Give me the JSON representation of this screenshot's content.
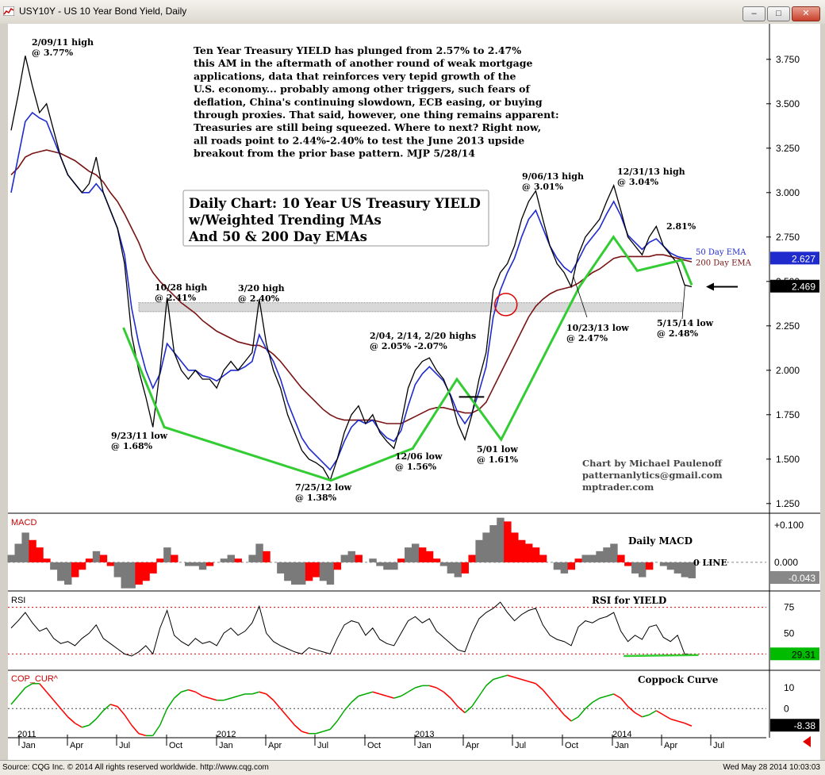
{
  "window": {
    "title": "USY10Y - US 10 Year Bond Yield, Daily"
  },
  "status": {
    "left": "Source: CQG Inc. © 2014 All rights reserved worldwide. http://www.cqg.com",
    "right": "Wed May 28 2014 10:03:03"
  },
  "colors": {
    "price": "#000000",
    "ema50": "#1f2bcc",
    "ema200": "#7a1414",
    "trend": "#33cc33",
    "red": "#ff0000",
    "green": "#00aa00",
    "macd_fill": "#7a7a7a"
  },
  "chart_data": {
    "type": "line",
    "price_panel": {
      "ylim": [
        1.2,
        3.95
      ],
      "y_ticks": [
        "3.750",
        "3.500",
        "3.250",
        "3.000",
        "2.750",
        "2.500",
        "2.250",
        "2.000",
        "1.750",
        "1.500",
        "1.250"
      ],
      "last_labels": {
        "ema50": "2.627",
        "price": "2.469"
      },
      "ema_labels": {
        "ema50": "50 Day EMA",
        "ema200": "200 Day EMA"
      },
      "commentary": [
        "Ten Year Treasury YIELD has plunged from 2.57% to 2.47%",
        "this AM in the aftermath of another round of weak mortgage",
        "applications, data that reinforces very tepid growth of the",
        "U.S. economy... probably among other triggers, such fears of",
        "deflation, China's continuing slowdown, ECB easing, or buying",
        "through proxies. That said, however, one thing remains apparent:",
        "Treasuries are still being squeezed. Where to next? Right now,",
        "all roads point to 2.44%-2.40% to test the June 2013 upside",
        "breakout from the prior base pattern.  MJP 5/28/14"
      ],
      "title_box": [
        "Daily Chart: 10 Year US Treasury YIELD",
        "w/Weighted Trending MAs",
        "And 50 & 200 Day EMAs"
      ],
      "credit": [
        "Chart by Michael Paulenoff",
        "patternanlytics@gmail.com",
        "mptrader.com"
      ],
      "annotations": [
        {
          "label": [
            "2/09/11 high",
            "@ 3.77%"
          ]
        },
        {
          "label": [
            "10/28 high",
            "@ 2.41%"
          ]
        },
        {
          "label": [
            "3/20 high",
            "@ 2.40%"
          ]
        },
        {
          "label": [
            "9/23/11 low",
            "@ 1.68%"
          ]
        },
        {
          "label": [
            "7/25/12 low",
            "@ 1.38%"
          ]
        },
        {
          "label": [
            "2/04, 2/14, 2/20 highs",
            "@ 2.05% -2.07%"
          ]
        },
        {
          "label": [
            "12/06 low",
            "@ 1.56%"
          ]
        },
        {
          "label": [
            "5/01 low",
            "@ 1.61%"
          ]
        },
        {
          "label": [
            "9/06/13 high",
            "@ 3.01%"
          ]
        },
        {
          "label": [
            "12/31/13 high",
            "@ 3.04%"
          ]
        },
        {
          "label": [
            "2.81%"
          ]
        },
        {
          "label": [
            "10/23/13 low",
            "@ 2.47%"
          ]
        },
        {
          "label": [
            "5/15/14 low",
            "@ 2.48%"
          ]
        }
      ],
      "series": [
        {
          "name": "USY10Y",
          "values": [
            3.35,
            3.55,
            3.77,
            3.6,
            3.45,
            3.5,
            3.35,
            3.2,
            3.1,
            3.05,
            3.0,
            3.05,
            3.2,
            3.0,
            2.9,
            2.8,
            2.6,
            2.2,
            2.0,
            1.85,
            1.68,
            2.0,
            2.41,
            2.1,
            2.0,
            1.95,
            2.0,
            1.95,
            1.95,
            1.9,
            2.0,
            2.05,
            2.0,
            2.05,
            2.1,
            2.4,
            2.15,
            2.0,
            1.9,
            1.75,
            1.65,
            1.55,
            1.5,
            1.48,
            1.45,
            1.38,
            1.5,
            1.65,
            1.75,
            1.8,
            1.7,
            1.75,
            1.65,
            1.6,
            1.56,
            1.7,
            1.9,
            2.0,
            2.05,
            2.07,
            2.0,
            1.95,
            1.85,
            1.7,
            1.61,
            1.75,
            1.95,
            2.1,
            2.45,
            2.55,
            2.6,
            2.7,
            2.85,
            2.95,
            3.01,
            2.85,
            2.7,
            2.6,
            2.55,
            2.47,
            2.65,
            2.75,
            2.8,
            2.85,
            2.95,
            3.04,
            2.9,
            2.75,
            2.7,
            2.65,
            2.75,
            2.81,
            2.7,
            2.65,
            2.6,
            2.48,
            2.47
          ]
        },
        {
          "name": "50 Day EMA",
          "values": [
            3.0,
            3.2,
            3.4,
            3.45,
            3.42,
            3.4,
            3.3,
            3.2,
            3.1,
            3.05,
            3.0,
            3.0,
            3.05,
            3.0,
            2.9,
            2.8,
            2.65,
            2.35,
            2.15,
            2.0,
            1.9,
            1.98,
            2.15,
            2.1,
            2.05,
            2.0,
            2.0,
            1.97,
            1.96,
            1.94,
            1.97,
            2.0,
            2.0,
            2.02,
            2.05,
            2.2,
            2.12,
            2.05,
            1.95,
            1.82,
            1.72,
            1.62,
            1.56,
            1.52,
            1.48,
            1.44,
            1.5,
            1.6,
            1.68,
            1.72,
            1.7,
            1.72,
            1.66,
            1.62,
            1.6,
            1.66,
            1.8,
            1.92,
            1.98,
            2.02,
            1.98,
            1.94,
            1.86,
            1.76,
            1.7,
            1.76,
            1.88,
            2.02,
            2.3,
            2.45,
            2.55,
            2.63,
            2.75,
            2.85,
            2.9,
            2.8,
            2.7,
            2.63,
            2.58,
            2.55,
            2.62,
            2.7,
            2.75,
            2.8,
            2.88,
            2.95,
            2.87,
            2.76,
            2.72,
            2.68,
            2.72,
            2.74,
            2.7,
            2.66,
            2.64,
            2.63,
            2.627
          ]
        },
        {
          "name": "200 Day EMA",
          "values": [
            3.1,
            3.14,
            3.2,
            3.22,
            3.23,
            3.24,
            3.23,
            3.22,
            3.2,
            3.18,
            3.15,
            3.12,
            3.1,
            3.06,
            3.0,
            2.95,
            2.88,
            2.8,
            2.72,
            2.62,
            2.55,
            2.5,
            2.46,
            2.42,
            2.38,
            2.35,
            2.32,
            2.28,
            2.25,
            2.22,
            2.2,
            2.18,
            2.16,
            2.15,
            2.14,
            2.14,
            2.12,
            2.09,
            2.05,
            2.0,
            1.95,
            1.9,
            1.86,
            1.82,
            1.78,
            1.75,
            1.73,
            1.72,
            1.72,
            1.72,
            1.72,
            1.72,
            1.71,
            1.7,
            1.7,
            1.7,
            1.72,
            1.74,
            1.76,
            1.78,
            1.79,
            1.79,
            1.78,
            1.77,
            1.76,
            1.76,
            1.78,
            1.82,
            1.9,
            1.98,
            2.06,
            2.14,
            2.22,
            2.3,
            2.36,
            2.4,
            2.43,
            2.45,
            2.46,
            2.47,
            2.49,
            2.52,
            2.55,
            2.57,
            2.6,
            2.63,
            2.64,
            2.64,
            2.64,
            2.64,
            2.64,
            2.65,
            2.65,
            2.64,
            2.63,
            2.62,
            2.61
          ]
        }
      ]
    },
    "macd_panel": {
      "title": "Daily MACD",
      "zero_label": "0 LINE",
      "ylim": [
        -0.075,
        0.13
      ],
      "y_ticks": [
        "+0.100",
        "0.000"
      ],
      "last_label": "-0.043",
      "values": [
        0.02,
        0.05,
        0.08,
        0.06,
        0.04,
        0.01,
        -0.02,
        -0.05,
        -0.06,
        -0.04,
        -0.02,
        0.01,
        0.03,
        0.02,
        -0.01,
        -0.04,
        -0.07,
        -0.07,
        -0.06,
        -0.05,
        -0.03,
        0.01,
        0.04,
        0.02,
        0.0,
        -0.01,
        -0.01,
        -0.02,
        -0.01,
        0.0,
        0.01,
        0.02,
        0.01,
        0.0,
        0.02,
        0.05,
        0.03,
        0.0,
        -0.03,
        -0.05,
        -0.06,
        -0.06,
        -0.05,
        -0.04,
        -0.05,
        -0.06,
        -0.02,
        0.02,
        0.03,
        0.02,
        0.0,
        0.01,
        -0.01,
        -0.02,
        -0.02,
        0.01,
        0.04,
        0.05,
        0.04,
        0.03,
        0.01,
        -0.01,
        -0.03,
        -0.04,
        -0.03,
        0.02,
        0.06,
        0.08,
        0.1,
        0.12,
        0.11,
        0.08,
        0.06,
        0.05,
        0.04,
        0.02,
        0.0,
        -0.02,
        -0.03,
        -0.02,
        0.01,
        0.02,
        0.02,
        0.03,
        0.04,
        0.05,
        0.02,
        -0.01,
        -0.03,
        -0.04,
        -0.02,
        0.0,
        -0.01,
        -0.02,
        -0.03,
        -0.04,
        -0.043
      ]
    },
    "rsi_panel": {
      "title": "RSI for YIELD",
      "ylim": [
        15,
        90
      ],
      "y_ticks": [
        "75",
        "50"
      ],
      "last_label": "29.31",
      "values": [
        55,
        62,
        70,
        60,
        52,
        55,
        45,
        40,
        42,
        38,
        45,
        50,
        58,
        45,
        40,
        35,
        30,
        28,
        32,
        38,
        30,
        55,
        72,
        48,
        42,
        38,
        45,
        40,
        42,
        38,
        50,
        55,
        48,
        52,
        60,
        76,
        50,
        42,
        38,
        35,
        32,
        30,
        36,
        34,
        32,
        30,
        45,
        58,
        62,
        60,
        48,
        55,
        44,
        40,
        38,
        50,
        62,
        66,
        60,
        64,
        52,
        46,
        40,
        34,
        32,
        50,
        64,
        70,
        74,
        80,
        70,
        62,
        68,
        72,
        74,
        58,
        48,
        44,
        42,
        38,
        56,
        62,
        60,
        64,
        66,
        70,
        52,
        42,
        48,
        44,
        56,
        58,
        46,
        42,
        48,
        30,
        29.31
      ]
    },
    "coppock_panel": {
      "title": "Coppock Curve",
      "ylim": [
        -14,
        18
      ],
      "y_ticks": [
        "10",
        "0"
      ],
      "last_label": "-8.38",
      "values": [
        2,
        6,
        10,
        12,
        12,
        8,
        4,
        0,
        -4,
        -7,
        -9,
        -8,
        -5,
        -1,
        2,
        1,
        -3,
        -8,
        -12,
        -13,
        -13,
        -8,
        0,
        5,
        8,
        9,
        8,
        6,
        5,
        4,
        4,
        5,
        6,
        7,
        7,
        8,
        7,
        4,
        0,
        -4,
        -8,
        -11,
        -12,
        -12,
        -11,
        -10,
        -6,
        -1,
        3,
        6,
        7,
        8,
        7,
        6,
        5,
        6,
        8,
        10,
        11,
        11,
        10,
        8,
        5,
        1,
        -2,
        1,
        6,
        11,
        14,
        15,
        16,
        15,
        14,
        13,
        12,
        9,
        5,
        1,
        -3,
        -6,
        -4,
        0,
        3,
        5,
        6,
        7,
        5,
        1,
        -2,
        -4,
        -3,
        -1,
        -3,
        -5,
        -6,
        -7,
        -8.38
      ]
    },
    "x_axis": {
      "month_labels": [
        "Jan",
        "Apr",
        "Jul",
        "Oct",
        "Jan",
        "Apr",
        "Jul",
        "Oct",
        "Jan",
        "Apr",
        "Jul",
        "Oct",
        "Jan",
        "Apr",
        "Jul"
      ],
      "year_labels": [
        "2011",
        "2012",
        "2013",
        "2014"
      ]
    }
  }
}
